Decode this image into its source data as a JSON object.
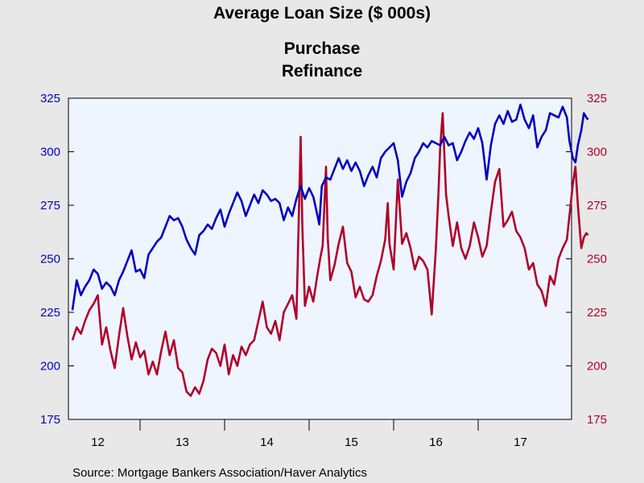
{
  "chart_data": {
    "type": "line",
    "title": "Average Loan Size ($ 000s)",
    "source": "Source:  Mortgage Bankers Association/Haver Analytics",
    "x_ticks": [
      "12",
      "13",
      "14",
      "15",
      "16",
      "17"
    ],
    "x_range": [
      2011.7,
      2017.65
    ],
    "ylim": [
      175,
      325
    ],
    "y_ticks": [
      175,
      200,
      225,
      250,
      275,
      300,
      325
    ],
    "y_tick_labels": [
      "175",
      "200",
      "225",
      "250",
      "275",
      "300",
      "325"
    ],
    "plot_background": "#eef5fe",
    "series": [
      {
        "name": "Purchase",
        "color": "#0000c0",
        "axis": "left",
        "points": [
          [
            2011.7,
            226
          ],
          [
            2011.75,
            240
          ],
          [
            2011.8,
            233
          ],
          [
            2011.85,
            237
          ],
          [
            2011.9,
            240
          ],
          [
            2011.95,
            245
          ],
          [
            2012.0,
            243
          ],
          [
            2012.05,
            236
          ],
          [
            2012.1,
            239
          ],
          [
            2012.15,
            237
          ],
          [
            2012.2,
            233
          ],
          [
            2012.25,
            240
          ],
          [
            2012.3,
            244
          ],
          [
            2012.35,
            249
          ],
          [
            2012.4,
            254
          ],
          [
            2012.45,
            244
          ],
          [
            2012.5,
            245
          ],
          [
            2012.55,
            241
          ],
          [
            2012.6,
            252
          ],
          [
            2012.65,
            255
          ],
          [
            2012.7,
            258
          ],
          [
            2012.75,
            260
          ],
          [
            2012.8,
            265
          ],
          [
            2012.85,
            270
          ],
          [
            2012.9,
            268
          ],
          [
            2012.95,
            269
          ],
          [
            2013.0,
            265
          ],
          [
            2013.05,
            259
          ],
          [
            2013.1,
            255
          ],
          [
            2013.15,
            252
          ],
          [
            2013.2,
            261
          ],
          [
            2013.25,
            263
          ],
          [
            2013.3,
            266
          ],
          [
            2013.35,
            264
          ],
          [
            2013.4,
            269
          ],
          [
            2013.45,
            273
          ],
          [
            2013.5,
            265
          ],
          [
            2013.55,
            271
          ],
          [
            2013.6,
            276
          ],
          [
            2013.65,
            281
          ],
          [
            2013.7,
            277
          ],
          [
            2013.75,
            270
          ],
          [
            2013.8,
            275
          ],
          [
            2013.85,
            280
          ],
          [
            2013.9,
            276
          ],
          [
            2013.95,
            282
          ],
          [
            2014.0,
            280
          ],
          [
            2014.05,
            277
          ],
          [
            2014.1,
            278
          ],
          [
            2014.15,
            276
          ],
          [
            2014.2,
            268
          ],
          [
            2014.25,
            274
          ],
          [
            2014.3,
            270
          ],
          [
            2014.35,
            278
          ],
          [
            2014.4,
            284
          ],
          [
            2014.45,
            278
          ],
          [
            2014.5,
            283
          ],
          [
            2014.55,
            279
          ],
          [
            2014.6,
            270
          ],
          [
            2014.62,
            266
          ],
          [
            2014.65,
            284
          ],
          [
            2014.7,
            288
          ],
          [
            2014.75,
            287
          ],
          [
            2014.8,
            292
          ],
          [
            2014.85,
            297
          ],
          [
            2014.9,
            292
          ],
          [
            2014.95,
            296
          ],
          [
            2015.0,
            291
          ],
          [
            2015.05,
            295
          ],
          [
            2015.1,
            291
          ],
          [
            2015.15,
            284
          ],
          [
            2015.2,
            289
          ],
          [
            2015.25,
            293
          ],
          [
            2015.3,
            288
          ],
          [
            2015.35,
            297
          ],
          [
            2015.4,
            300
          ],
          [
            2015.45,
            302
          ],
          [
            2015.5,
            304
          ],
          [
            2015.55,
            296
          ],
          [
            2015.6,
            279
          ],
          [
            2015.65,
            286
          ],
          [
            2015.7,
            290
          ],
          [
            2015.75,
            297
          ],
          [
            2015.8,
            300
          ],
          [
            2015.85,
            304
          ],
          [
            2015.9,
            302
          ],
          [
            2015.95,
            305
          ],
          [
            2016.0,
            304
          ],
          [
            2016.05,
            303
          ],
          [
            2016.1,
            307
          ],
          [
            2016.15,
            303
          ],
          [
            2016.2,
            304
          ],
          [
            2016.25,
            296
          ],
          [
            2016.3,
            300
          ],
          [
            2016.35,
            305
          ],
          [
            2016.4,
            309
          ],
          [
            2016.45,
            306
          ],
          [
            2016.5,
            311
          ],
          [
            2016.55,
            304
          ],
          [
            2016.6,
            287
          ],
          [
            2016.65,
            303
          ],
          [
            2016.7,
            313
          ],
          [
            2016.75,
            317
          ],
          [
            2016.8,
            313
          ],
          [
            2016.85,
            319
          ],
          [
            2016.9,
            314
          ],
          [
            2016.95,
            315
          ],
          [
            2017.0,
            322
          ],
          [
            2017.05,
            315
          ],
          [
            2017.1,
            311
          ],
          [
            2017.15,
            317
          ],
          [
            2017.2,
            302
          ],
          [
            2017.25,
            307
          ],
          [
            2017.3,
            310
          ],
          [
            2017.35,
            318
          ],
          [
            2017.4,
            317
          ],
          [
            2017.45,
            316
          ],
          [
            2017.5,
            321
          ],
          [
            2017.55,
            316
          ],
          [
            2017.58,
            305
          ],
          [
            2017.62,
            297
          ],
          [
            2017.65,
            295
          ],
          [
            2017.68,
            303
          ],
          [
            2017.72,
            310
          ],
          [
            2017.75,
            318
          ],
          [
            2017.78,
            316
          ],
          [
            2017.8,
            315
          ]
        ]
      },
      {
        "name": "Refinance",
        "color": "#b0002a",
        "axis": "right",
        "points": [
          [
            2011.7,
            212
          ],
          [
            2011.75,
            218
          ],
          [
            2011.8,
            215
          ],
          [
            2011.85,
            221
          ],
          [
            2011.9,
            226
          ],
          [
            2011.95,
            229
          ],
          [
            2012.0,
            233
          ],
          [
            2012.05,
            210
          ],
          [
            2012.1,
            218
          ],
          [
            2012.15,
            207
          ],
          [
            2012.2,
            199
          ],
          [
            2012.25,
            214
          ],
          [
            2012.3,
            227
          ],
          [
            2012.35,
            214
          ],
          [
            2012.4,
            203
          ],
          [
            2012.45,
            211
          ],
          [
            2012.5,
            204
          ],
          [
            2012.55,
            207
          ],
          [
            2012.6,
            196
          ],
          [
            2012.65,
            202
          ],
          [
            2012.7,
            196
          ],
          [
            2012.75,
            207
          ],
          [
            2012.8,
            216
          ],
          [
            2012.85,
            205
          ],
          [
            2012.9,
            212
          ],
          [
            2012.95,
            199
          ],
          [
            2013.0,
            197
          ],
          [
            2013.05,
            188
          ],
          [
            2013.1,
            186
          ],
          [
            2013.15,
            190
          ],
          [
            2013.2,
            187
          ],
          [
            2013.25,
            193
          ],
          [
            2013.3,
            203
          ],
          [
            2013.35,
            208
          ],
          [
            2013.4,
            206
          ],
          [
            2013.45,
            200
          ],
          [
            2013.5,
            210
          ],
          [
            2013.55,
            196
          ],
          [
            2013.6,
            205
          ],
          [
            2013.65,
            200
          ],
          [
            2013.7,
            209
          ],
          [
            2013.75,
            205
          ],
          [
            2013.8,
            210
          ],
          [
            2013.85,
            212
          ],
          [
            2013.9,
            221
          ],
          [
            2013.95,
            230
          ],
          [
            2014.0,
            218
          ],
          [
            2014.05,
            215
          ],
          [
            2014.1,
            221
          ],
          [
            2014.15,
            212
          ],
          [
            2014.2,
            225
          ],
          [
            2014.25,
            229
          ],
          [
            2014.3,
            233
          ],
          [
            2014.35,
            222
          ],
          [
            2014.4,
            307
          ],
          [
            2014.42,
            265
          ],
          [
            2014.45,
            228
          ],
          [
            2014.5,
            237
          ],
          [
            2014.55,
            230
          ],
          [
            2014.6,
            243
          ],
          [
            2014.63,
            250
          ],
          [
            2014.66,
            256
          ],
          [
            2014.7,
            293
          ],
          [
            2014.72,
            260
          ],
          [
            2014.75,
            240
          ],
          [
            2014.8,
            247
          ],
          [
            2014.85,
            257
          ],
          [
            2014.9,
            265
          ],
          [
            2014.95,
            248
          ],
          [
            2015.0,
            244
          ],
          [
            2015.05,
            232
          ],
          [
            2015.1,
            237
          ],
          [
            2015.15,
            231
          ],
          [
            2015.2,
            230
          ],
          [
            2015.25,
            233
          ],
          [
            2015.3,
            242
          ],
          [
            2015.35,
            249
          ],
          [
            2015.4,
            259
          ],
          [
            2015.43,
            276
          ],
          [
            2015.45,
            257
          ],
          [
            2015.5,
            245
          ],
          [
            2015.55,
            287
          ],
          [
            2015.6,
            257
          ],
          [
            2015.65,
            262
          ],
          [
            2015.7,
            255
          ],
          [
            2015.75,
            245
          ],
          [
            2015.8,
            251
          ],
          [
            2015.85,
            249
          ],
          [
            2015.9,
            245
          ],
          [
            2015.95,
            224
          ],
          [
            2016.0,
            255
          ],
          [
            2016.03,
            280
          ],
          [
            2016.05,
            301
          ],
          [
            2016.08,
            318
          ],
          [
            2016.12,
            280
          ],
          [
            2016.15,
            270
          ],
          [
            2016.2,
            256
          ],
          [
            2016.25,
            267
          ],
          [
            2016.3,
            255
          ],
          [
            2016.35,
            250
          ],
          [
            2016.4,
            256
          ],
          [
            2016.45,
            267
          ],
          [
            2016.5,
            260
          ],
          [
            2016.55,
            251
          ],
          [
            2016.6,
            256
          ],
          [
            2016.65,
            272
          ],
          [
            2016.7,
            286
          ],
          [
            2016.75,
            292
          ],
          [
            2016.8,
            265
          ],
          [
            2016.85,
            268
          ],
          [
            2016.9,
            272
          ],
          [
            2016.95,
            263
          ],
          [
            2017.0,
            260
          ],
          [
            2017.05,
            255
          ],
          [
            2017.1,
            245
          ],
          [
            2017.15,
            248
          ],
          [
            2017.2,
            238
          ],
          [
            2017.25,
            235
          ],
          [
            2017.3,
            228
          ],
          [
            2017.35,
            242
          ],
          [
            2017.4,
            238
          ],
          [
            2017.45,
            250
          ],
          [
            2017.5,
            255
          ],
          [
            2017.55,
            259
          ],
          [
            2017.58,
            270
          ],
          [
            2017.62,
            285
          ],
          [
            2017.65,
            293
          ],
          [
            2017.68,
            275
          ],
          [
            2017.72,
            255
          ],
          [
            2017.75,
            260
          ],
          [
            2017.78,
            262
          ],
          [
            2017.8,
            261
          ]
        ]
      }
    ]
  }
}
